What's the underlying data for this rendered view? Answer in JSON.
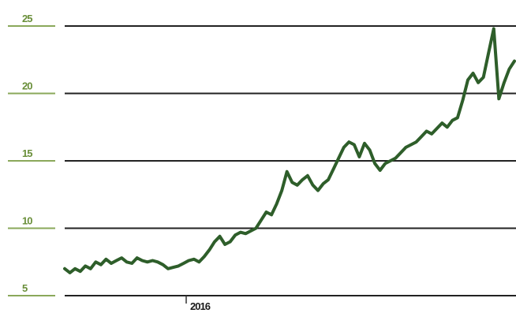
{
  "colors": {
    "line": "#2e5e2a",
    "tick_label": "#6a8f3a",
    "tick_mark": "#8aa85a",
    "grid": "#222222"
  },
  "chart_data": {
    "type": "line",
    "title": "",
    "xlabel": "",
    "ylabel": "",
    "x_tick_labels": [
      "2016"
    ],
    "y_ticks": [
      5,
      10,
      15,
      20,
      25
    ],
    "y_tick_labels": [
      "5",
      "10",
      "15",
      "20",
      "25"
    ],
    "ylim": [
      5,
      25
    ],
    "grid": "horizontal",
    "legend": "none",
    "series": [
      {
        "values": [
          7.0,
          6.7,
          7.0,
          6.8,
          7.2,
          7.0,
          7.5,
          7.3,
          7.7,
          7.4,
          7.6,
          7.8,
          7.5,
          7.4,
          7.8,
          7.6,
          7.5,
          7.6,
          7.5,
          7.3,
          7.0,
          7.1,
          7.2,
          7.4,
          7.6,
          7.7,
          7.5,
          7.9,
          8.4,
          9.0,
          9.4,
          8.8,
          9.0,
          9.5,
          9.7,
          9.6,
          9.8,
          10.0,
          10.6,
          11.2,
          11.0,
          11.8,
          12.8,
          14.2,
          13.4,
          13.2,
          13.6,
          13.9,
          13.2,
          12.8,
          13.3,
          13.6,
          14.4,
          15.2,
          16.0,
          16.4,
          16.2,
          15.3,
          16.3,
          15.8,
          14.8,
          14.3,
          14.8,
          15.0,
          15.2,
          15.6,
          16.0,
          16.2,
          16.4,
          16.8,
          17.2,
          17.0,
          17.4,
          17.8,
          17.5,
          18.0,
          18.2,
          19.5,
          21.0,
          21.5,
          20.8,
          21.2,
          23.0,
          24.8,
          19.6,
          20.8,
          21.8,
          22.4
        ]
      }
    ]
  }
}
